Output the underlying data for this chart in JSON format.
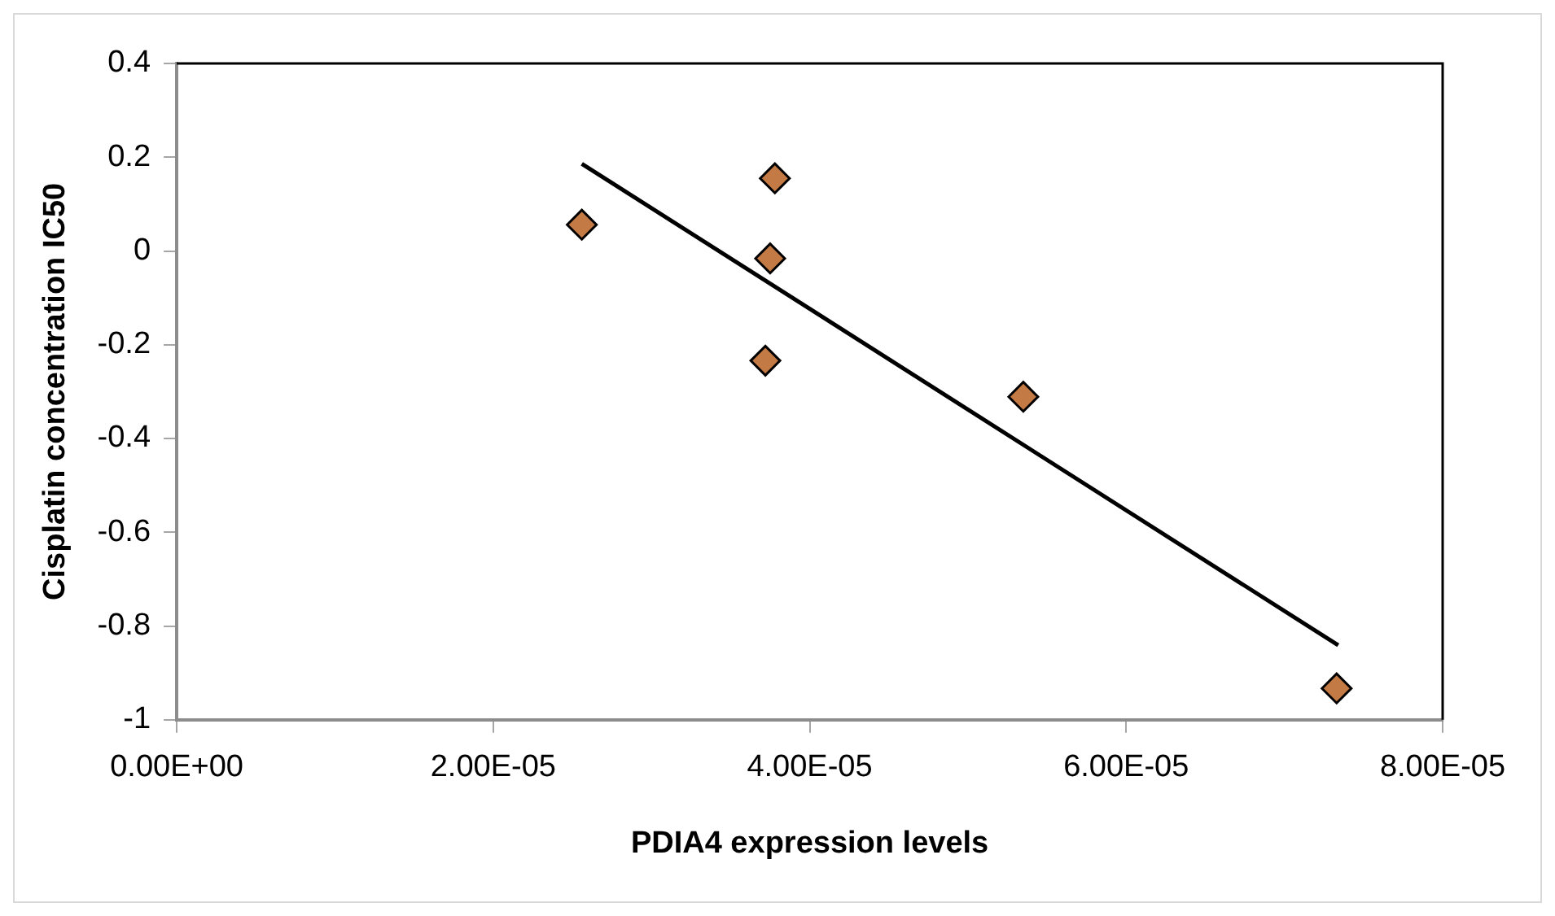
{
  "chart_data": {
    "type": "scatter",
    "xlabel": "PDIA4 expression levels",
    "ylabel": "Cisplatin concentration IC50",
    "xlim": [
      0,
      8e-05
    ],
    "xticks": [
      {
        "value": 0,
        "label": "0.00E+00"
      },
      {
        "value": 2e-05,
        "label": "2.00E-05"
      },
      {
        "value": 4e-05,
        "label": "4.00E-05"
      },
      {
        "value": 6e-05,
        "label": "6.00E-05"
      },
      {
        "value": 8e-05,
        "label": "8.00E-05"
      }
    ],
    "ylim": [
      -1,
      0.4
    ],
    "yticks": [
      -1,
      -0.8,
      -0.6,
      -0.4,
      -0.2,
      0,
      0.2,
      0.4
    ],
    "grid": false,
    "legend": false,
    "series": [
      {
        "type": "scatter",
        "color": "#c47a45",
        "marker": "diamond",
        "x": [
          2.56e-05,
          3.78e-05,
          3.75e-05,
          3.72e-05,
          5.35e-05,
          7.33e-05
        ],
        "values": [
          0.056,
          0.155,
          -0.016,
          -0.234,
          -0.311,
          -0.933
        ]
      },
      {
        "type": "line",
        "color": "#000000",
        "marker": "none",
        "line_style": "solid",
        "x": [
          2.56e-05,
          7.34e-05
        ],
        "values": [
          0.186,
          -0.841
        ]
      }
    ]
  }
}
